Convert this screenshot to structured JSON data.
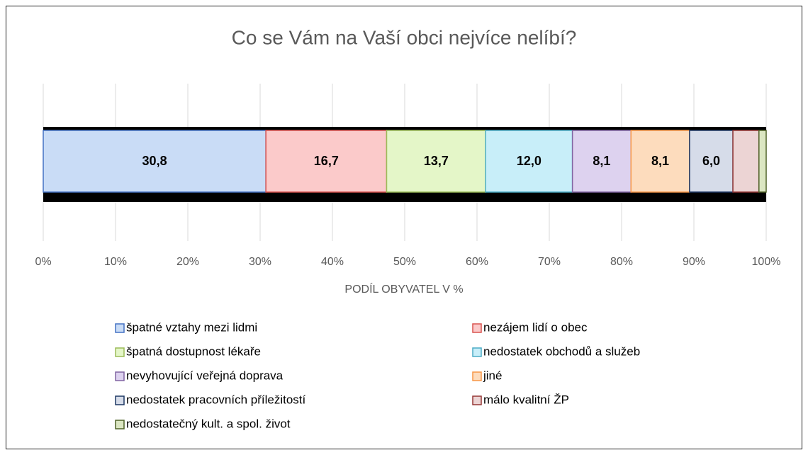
{
  "chart_data": {
    "type": "stacked_bar_horizontal",
    "title": "Co se Vám na Vaší obci nejvíce nelíbí?",
    "x_label": "PODÍL OBYVATEL V %",
    "xlim": [
      0,
      100
    ],
    "xticks": [
      {
        "value": 0,
        "label": "0%"
      },
      {
        "value": 10,
        "label": "10%"
      },
      {
        "value": 20,
        "label": "20%"
      },
      {
        "value": 30,
        "label": "30%"
      },
      {
        "value": 40,
        "label": "40%"
      },
      {
        "value": 50,
        "label": "50%"
      },
      {
        "value": 60,
        "label": "60%"
      },
      {
        "value": 70,
        "label": "70%"
      },
      {
        "value": 80,
        "label": "80%"
      },
      {
        "value": 90,
        "label": "90%"
      },
      {
        "value": 100,
        "label": "100%"
      }
    ],
    "grid": true,
    "series": [
      {
        "name": "špatné vztahy mezi lidmi",
        "color": "#c9dcf6",
        "border": "#4472c4",
        "values": [
          30.8
        ],
        "value_labels": [
          "30,8"
        ]
      },
      {
        "name": "nezájem lidí o obec",
        "color": "#fbcaca",
        "border": "#d9534f",
        "values": [
          16.7
        ],
        "value_labels": [
          "16,7"
        ]
      },
      {
        "name": "špatná dostupnost lékaře",
        "color": "#e4f6c8",
        "border": "#9bbb59",
        "values": [
          13.7
        ],
        "value_labels": [
          "13,7"
        ]
      },
      {
        "name": "nedostatek  obchodů a služeb",
        "color": "#c8eef9",
        "border": "#4bacc6",
        "values": [
          12.0
        ],
        "value_labels": [
          "12,0"
        ]
      },
      {
        "name": "nevyhovující veřejná doprava",
        "color": "#ddd2ef",
        "border": "#8064a2",
        "values": [
          8.1
        ],
        "value_labels": [
          "8,1"
        ]
      },
      {
        "name": "jiné",
        "color": "#fddcbd",
        "border": "#f79646",
        "values": [
          8.1
        ],
        "value_labels": [
          "8,1"
        ]
      },
      {
        "name": "nedostatek pracovních příležitostí",
        "color": "#d6dce9",
        "border": "#1f3864",
        "values": [
          6.0
        ],
        "value_labels": [
          "6,0"
        ]
      },
      {
        "name": "málo kvalitní ŽP",
        "color": "#ecd4d4",
        "border": "#953735",
        "values": [
          3.6
        ]
      },
      {
        "name": "nedostatečný kult. a spol. život",
        "color": "#dbe6c2",
        "border": "#4f6228",
        "values": [
          1.0
        ]
      }
    ]
  }
}
